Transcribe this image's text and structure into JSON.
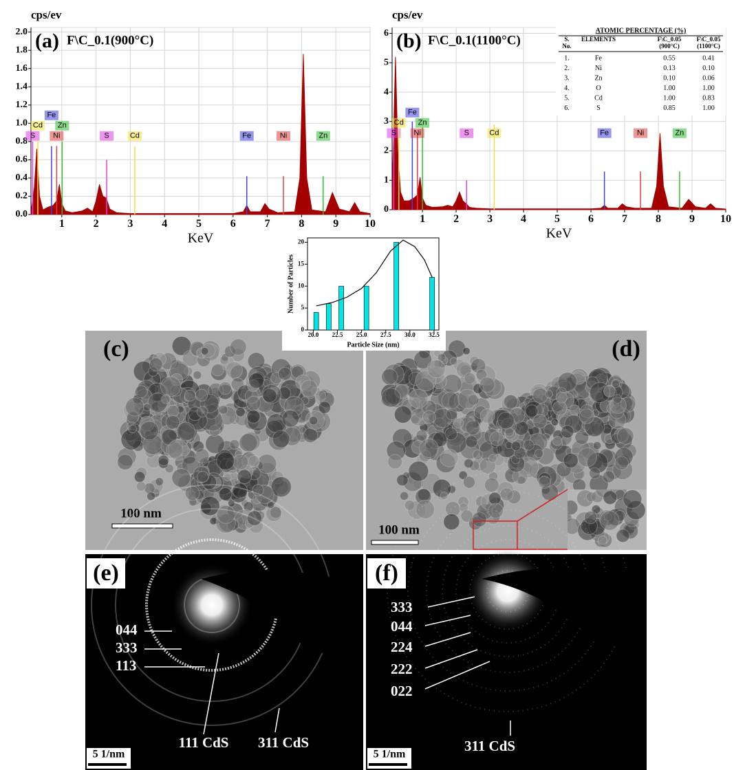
{
  "chart_data": [
    {
      "type": "area",
      "panel_label": "(a)",
      "title": "F\\C_0.1(900°C)",
      "y_label": "cps/ev",
      "x_label": "KeV",
      "color": "#a50000",
      "grid": true,
      "x": [
        0.1,
        0.2,
        0.27,
        0.35,
        0.45,
        0.6,
        0.75,
        0.85,
        0.93,
        1.0,
        1.1,
        1.3,
        1.6,
        1.75,
        1.9,
        2.0,
        2.1,
        2.2,
        2.3,
        2.4,
        2.6,
        3.0,
        4.0,
        5.0,
        6.0,
        6.3,
        6.4,
        6.5,
        6.8,
        6.93,
        7.05,
        7.3,
        7.8,
        7.95,
        8.05,
        8.15,
        8.3,
        8.7,
        8.9,
        9.1,
        9.4,
        9.55,
        9.7,
        10.0
      ],
      "values": [
        0.02,
        0.3,
        0.72,
        0.2,
        0.05,
        0.08,
        0.1,
        0.15,
        0.33,
        0.12,
        0.04,
        0.02,
        0.04,
        0.07,
        0.03,
        0.15,
        0.33,
        0.2,
        0.18,
        0.06,
        0.02,
        0.01,
        0.01,
        0.01,
        0.01,
        0.03,
        0.1,
        0.03,
        0.03,
        0.12,
        0.06,
        0.02,
        0.03,
        0.4,
        1.76,
        0.4,
        0.05,
        0.03,
        0.24,
        0.06,
        0.03,
        0.13,
        0.03,
        0.01
      ],
      "xlim": [
        0.1,
        10
      ],
      "xticks": [
        1,
        2,
        3,
        4,
        5,
        6,
        7,
        8,
        9,
        10
      ],
      "ylim": [
        0,
        2.05
      ],
      "yticks": [
        {
          "value": 0,
          "label": "0.0"
        },
        0.2,
        0.4,
        0.6,
        0.8,
        {
          "value": 1,
          "label": "1.0"
        },
        1.2,
        1.4,
        1.6,
        1.8,
        {
          "value": 2,
          "label": "2.0"
        }
      ],
      "markers": [
        {
          "label": "S",
          "x": 0.15,
          "height": 0.8,
          "color": "#e040e0"
        },
        {
          "label": "Cd",
          "x": 0.3,
          "height": 0.8,
          "color": "#f0e040"
        },
        {
          "label": "Fe",
          "x": 0.7,
          "height": 0.75,
          "color": "#4040e0"
        },
        {
          "label": "Zn",
          "x": 1.01,
          "height": 0.8,
          "color": "#30c030"
        },
        {
          "label": "Ni",
          "x": 0.85,
          "height": 0.75,
          "color": "#e04040"
        },
        {
          "label": "S",
          "x": 2.31,
          "height": 0.6,
          "color": "#e040e0"
        },
        {
          "label": "Cd",
          "x": 3.13,
          "height": 0.75,
          "color": "#f0e040"
        },
        {
          "label": "Fe",
          "x": 6.4,
          "height": 0.42,
          "color": "#4040e0"
        },
        {
          "label": "Ni",
          "x": 7.47,
          "height": 0.42,
          "color": "#e04040"
        },
        {
          "label": "Zn",
          "x": 8.63,
          "height": 0.42,
          "color": "#30c030"
        }
      ]
    },
    {
      "type": "area",
      "panel_label": "(b)",
      "title": "F\\C_0.1(1100°C)",
      "y_label": "cps/ev",
      "x_label": "KeV",
      "color": "#a50000",
      "grid": true,
      "x": [
        0.1,
        0.2,
        0.27,
        0.35,
        0.45,
        0.6,
        0.75,
        0.85,
        0.93,
        1.0,
        1.1,
        1.3,
        1.6,
        1.75,
        1.9,
        2.0,
        2.1,
        2.2,
        2.3,
        2.4,
        2.6,
        3.0,
        4.0,
        5.0,
        6.0,
        6.3,
        6.4,
        6.5,
        6.8,
        6.93,
        7.05,
        7.3,
        7.8,
        7.95,
        8.05,
        8.15,
        8.3,
        8.7,
        8.9,
        9.1,
        9.4,
        9.55,
        9.7,
        10.0
      ],
      "values": [
        0.5,
        5.2,
        2.0,
        0.6,
        0.3,
        0.3,
        0.4,
        0.5,
        1.1,
        0.4,
        0.15,
        0.08,
        0.1,
        0.15,
        0.1,
        0.3,
        0.6,
        0.3,
        0.2,
        0.08,
        0.05,
        0.03,
        0.03,
        0.03,
        0.03,
        0.05,
        0.15,
        0.05,
        0.05,
        0.2,
        0.1,
        0.05,
        0.05,
        0.8,
        2.6,
        0.8,
        0.1,
        0.05,
        0.35,
        0.1,
        0.05,
        0.2,
        0.05,
        0.02
      ],
      "xlim": [
        0.1,
        10
      ],
      "xticks": [
        1,
        2,
        3,
        4,
        5,
        6,
        7,
        8,
        9,
        10
      ],
      "ylim": [
        0,
        6.2
      ],
      "yticks": [
        0,
        1,
        2,
        3,
        4,
        5,
        6
      ],
      "markers": [
        {
          "label": "S",
          "x": 0.15,
          "height": 2.8,
          "color": "#e040e0"
        },
        {
          "label": "Cd",
          "x": 0.3,
          "height": 2.8,
          "color": "#f0e040"
        },
        {
          "label": "Fe",
          "x": 0.7,
          "height": 3.0,
          "color": "#4040e0"
        },
        {
          "label": "Zn",
          "x": 1.0,
          "height": 2.8,
          "color": "#30c030"
        },
        {
          "label": "Ni",
          "x": 0.85,
          "height": 2.6,
          "color": "#e04040"
        },
        {
          "label": "S",
          "x": 2.31,
          "height": 1.0,
          "color": "#e040e0"
        },
        {
          "label": "Cd",
          "x": 3.13,
          "height": 2.9,
          "color": "#f0e040"
        },
        {
          "label": "Fe",
          "x": 6.4,
          "height": 1.3,
          "color": "#4040e0"
        },
        {
          "label": "Ni",
          "x": 7.47,
          "height": 1.3,
          "color": "#e04040"
        },
        {
          "label": "Zn",
          "x": 8.63,
          "height": 1.3,
          "color": "#30c030"
        }
      ],
      "table": {
        "title": "ATOMIC PERCENTAGE (%)",
        "headers": [
          [
            "S.",
            "No."
          ],
          [
            "ELEMENTS"
          ],
          [
            "F\\C_0.05",
            "(900°C)"
          ],
          [
            "F\\C_0.05",
            "(1100°C)"
          ]
        ],
        "rows": [
          [
            "1.",
            "Fe",
            "0.55",
            "0.41"
          ],
          [
            "2.",
            "Ni",
            "0.13",
            "0.10"
          ],
          [
            "3.",
            "Zn",
            "0.10",
            "0.06"
          ],
          [
            "4.",
            "O",
            "1.00",
            "1.00"
          ],
          [
            "5.",
            "Cd",
            "1.00",
            "0.83"
          ],
          [
            "6.",
            "S",
            "0.85",
            "1.00"
          ]
        ]
      }
    },
    {
      "type": "bar",
      "x_label": "Particle Size (nm)",
      "y_label": "Number of Particles",
      "color": "#00e5e5",
      "x": [
        20.3,
        21.6,
        22.9,
        25.5,
        28.6,
        32.3
      ],
      "values": [
        4,
        6,
        10,
        10,
        20,
        12
      ],
      "fit": {
        "x": [
          20.3,
          22,
          23.5,
          25,
          26.5,
          28,
          29.3,
          30.5,
          31.5,
          32.3
        ],
        "values": [
          5.5,
          6.3,
          7.5,
          9.5,
          13,
          18,
          20.5,
          19,
          16,
          12
        ]
      },
      "xlim": [
        19.4,
        33
      ],
      "xticks": [
        {
          "value": 20,
          "label": "20.0"
        },
        22.5,
        {
          "value": 25,
          "label": "25.0"
        },
        27.5,
        {
          "value": 30,
          "label": "30.0"
        },
        32.5
      ],
      "ylim": [
        0,
        21
      ],
      "yticks": [
        0,
        5,
        10,
        15,
        20
      ]
    }
  ],
  "images": {
    "c": {
      "label": "(c)",
      "scale_bar": "100 nm"
    },
    "d": {
      "label": "(d)",
      "scale_bar": "100 nm"
    },
    "e": {
      "label": "(e)",
      "rings": [
        "044",
        "333",
        "113"
      ],
      "notes": [
        "111 CdS",
        "311 CdS"
      ],
      "scale_bar": "5 1/nm"
    },
    "f": {
      "label": "(f)",
      "rings": [
        "333",
        "044",
        "224",
        "222",
        "022"
      ],
      "notes": [
        "311 CdS"
      ],
      "scale_bar": "5 1/nm"
    }
  }
}
